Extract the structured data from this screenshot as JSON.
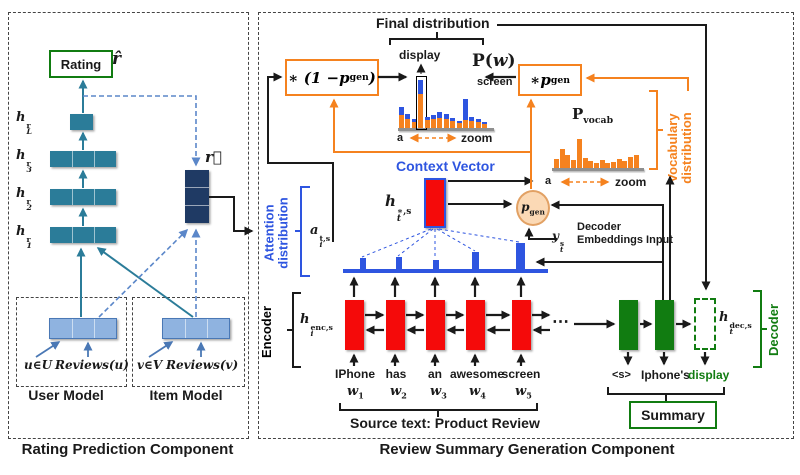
{
  "colors": {
    "teal": "#2B7C99",
    "navy": "#1F3A64",
    "light_blue": "#8FB3E0",
    "light_blue_border": "#4A78B5",
    "encoder_red": "#F50A0A",
    "decoder_green": "#117C11",
    "attention_blue": "#2E55E0",
    "orange": "#F5821F",
    "pgen_peach": "#FBD9B5",
    "dashed_blue": "#5B87C9"
  },
  "left": {
    "rating_label": "Rating",
    "r_hat": "r̂",
    "layers": [
      {
        "base": "h",
        "sup": "r",
        "sub": "L"
      },
      {
        "base": "h",
        "sup": "r",
        "sub": "3"
      },
      {
        "base": "h",
        "sup": "r",
        "sub": "2"
      },
      {
        "base": "h",
        "sup": "r",
        "sub": "1"
      }
    ],
    "r_vec": "r⃗",
    "user_box": {
      "member": "u∈U",
      "reviews": "Reviews(u)",
      "title": "User Model"
    },
    "item_box": {
      "member": "v∈V",
      "reviews": "Reviews(v)",
      "title": "Item Model"
    },
    "caption": "Rating Prediction Component"
  },
  "right": {
    "final_distribution": "Final distribution",
    "one_minus_pgen": {
      "pre": "∗ (1 − ",
      "base": "p",
      "sub": "gen",
      "post": ")"
    },
    "times_pgen": {
      "pre": "∗ ",
      "base": "p",
      "sub": "gen"
    },
    "display_label": "display",
    "pw": {
      "pre": "P(",
      "base": "w",
      "post": ")",
      "screen": "screen",
      "a": "a",
      "zoom": "zoom"
    },
    "pvocab": {
      "base": "P",
      "sub": "vocab",
      "a": "a",
      "zoom": "zoom"
    },
    "vocab_dist_lines": [
      "Vocabulary",
      "distribution"
    ],
    "context_vector": "Context Vector",
    "h_ts": {
      "base": "h",
      "sup": "∗,s",
      "sub": "t"
    },
    "pgen_circle": {
      "base": "p",
      "sub": "gen"
    },
    "y_ts": {
      "base": "y",
      "sup": "s",
      "sub": "t"
    },
    "decoder_embeddings_lines": [
      "Decoder",
      "Embeddings Input"
    ],
    "attention_dist_lines": [
      "Attention",
      "distribution"
    ],
    "a_its": {
      "base": "a",
      "sup": "t,s",
      "sub": "i"
    },
    "encoder_label": "Encoder",
    "h_enc": {
      "base": "h",
      "sup": "enc,s",
      "sub": "i"
    },
    "words": [
      {
        "token": "IPhone",
        "base": "w",
        "sub": "1"
      },
      {
        "token": "has",
        "base": "w",
        "sub": "2"
      },
      {
        "token": "an",
        "base": "w",
        "sub": "3"
      },
      {
        "token": "awesome",
        "base": "w",
        "sub": "4"
      },
      {
        "token": "screen",
        "base": "w",
        "sub": "5"
      }
    ],
    "dots": "⋯",
    "source_text": "Source text: Product Review",
    "h_dec": {
      "base": "h",
      "sup": "dec,s",
      "sub": "t"
    },
    "decoder_label": "Decoder",
    "summary_tokens": {
      "s": "<s>",
      "w1": "Iphone's",
      "w2": "display"
    },
    "summary": "Summary",
    "caption": "Review Summary Generation Component"
  },
  "chart_data": [
    {
      "type": "bar",
      "name": "final_distribution_Pw",
      "stacked": true,
      "series": [
        {
          "name": "copy-part-orange"
        },
        {
          "name": "vocab-part-blue"
        }
      ],
      "bars": [
        [
          13,
          8
        ],
        [
          9,
          5
        ],
        [
          6,
          3
        ],
        [
          34,
          14
        ],
        [
          8,
          3
        ],
        [
          9,
          4
        ],
        [
          10,
          6
        ],
        [
          9,
          5
        ],
        [
          7,
          3
        ],
        [
          5,
          2
        ],
        [
          8,
          21
        ],
        [
          7,
          4
        ],
        [
          6,
          3
        ],
        [
          4,
          2
        ]
      ],
      "highlight_index": 3,
      "highlight_word": "display",
      "second_peak_word": "screen",
      "x_left_label": "a",
      "x_right_label": "zoom"
    },
    {
      "type": "bar",
      "name": "P_vocab",
      "bars": [
        9,
        19,
        13,
        8,
        29,
        10,
        7,
        5,
        8,
        5,
        6,
        9,
        7,
        11,
        13
      ],
      "x_left_label": "a",
      "x_right_label": "zoom"
    },
    {
      "type": "bar",
      "name": "attention_distribution",
      "bars": [
        {
          "x": 17,
          "h": 11,
          "w": 6
        },
        {
          "x": 53,
          "h": 12,
          "w": 6
        },
        {
          "x": 90,
          "h": 9,
          "w": 6
        },
        {
          "x": 129,
          "h": 17,
          "w": 7
        },
        {
          "x": 173,
          "h": 26,
          "w": 9
        }
      ]
    }
  ]
}
